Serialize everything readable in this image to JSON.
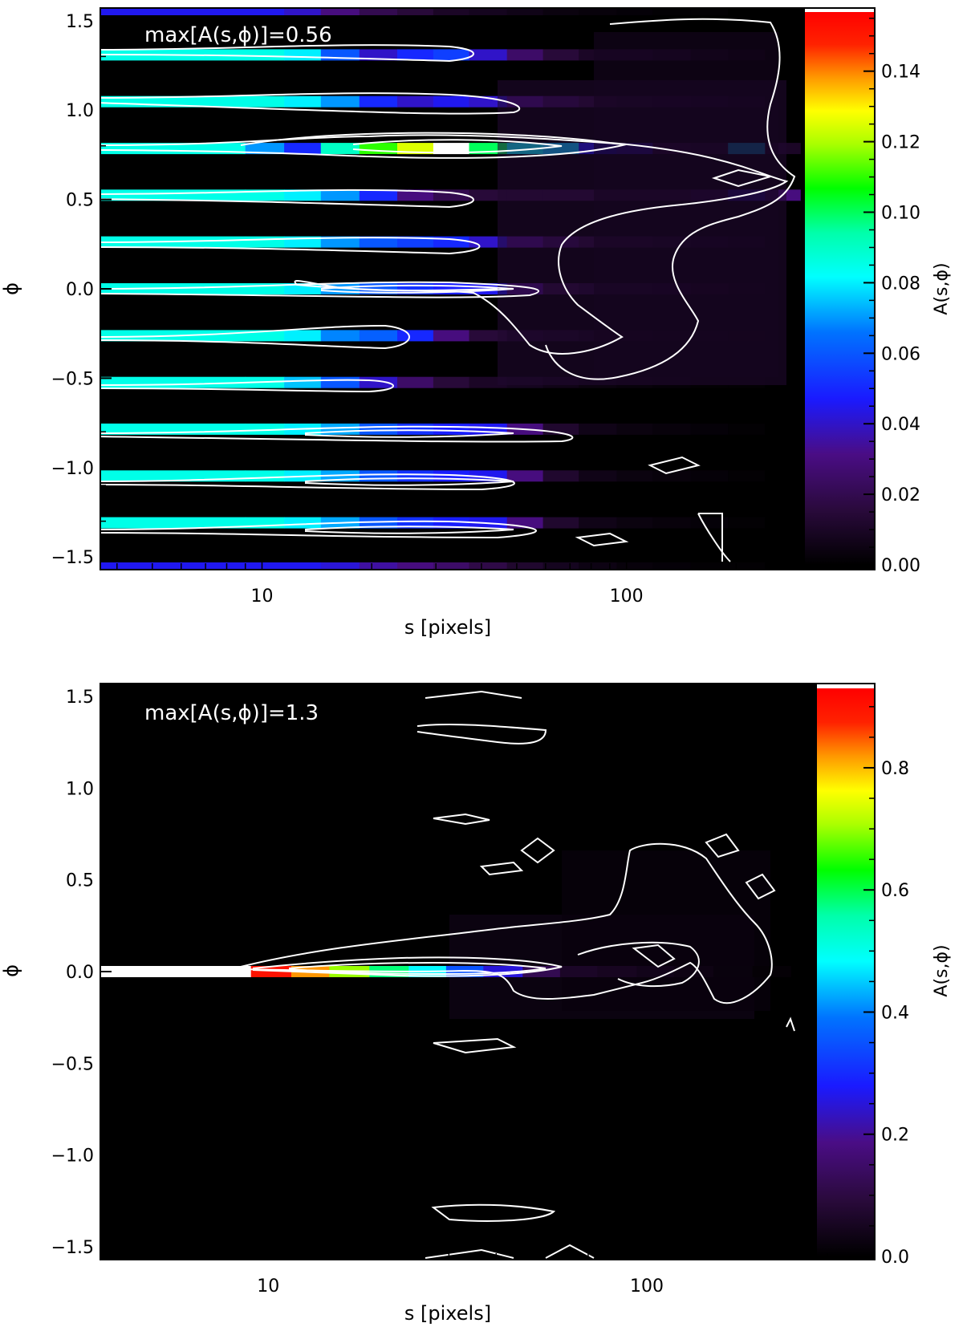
{
  "chart_data": [
    {
      "type": "heatmap",
      "annotation": "max[A(s,ϕ)]=0.56",
      "xlabel": "s [pixels]",
      "ylabel": "ϕ",
      "colorbar_label": "Α(s,ϕ)",
      "x_scale": "log",
      "xlim": [
        3.6,
        480
      ],
      "ylim": [
        -1.571,
        1.571
      ],
      "x_ticks": [
        10,
        100
      ],
      "x_tick_labels": [
        "10",
        "100"
      ],
      "y_ticks": [
        -1.5,
        -1.0,
        -0.5,
        0.0,
        0.5,
        1.0,
        1.5
      ],
      "y_tick_labels": [
        "−1.5",
        "−1.0",
        "−0.5",
        "0.0",
        "0.5",
        "1.0",
        "1.5"
      ],
      "colorbar_range": [
        0.0,
        0.157
      ],
      "colorbar_ticks": [
        0.0,
        0.02,
        0.04,
        0.06,
        0.08,
        0.1,
        0.12,
        0.14
      ],
      "colorbar_tick_labels": [
        "0.00",
        "0.02",
        "0.04",
        "0.06",
        "0.08",
        "0.10",
        "0.12",
        "0.14"
      ],
      "s_edges": [
        3.6,
        9,
        11.5,
        14.5,
        18.5,
        23.5,
        29.5,
        37,
        47,
        59,
        74,
        94,
        118,
        150,
        190,
        240,
        300
      ],
      "phi_centers": [
        -1.571,
        -1.309,
        -1.047,
        -0.785,
        -0.524,
        -0.262,
        0.0,
        0.262,
        0.524,
        0.785,
        1.047,
        1.309,
        1.571
      ],
      "values": [
        [
          0.045,
          0.045,
          0.045,
          0.042,
          0.035,
          0.03,
          0.025,
          0.018,
          0.012,
          0.008,
          0.005,
          0.003,
          0.002,
          0.001,
          0.001,
          0.0
        ],
        [
          0.085,
          0.085,
          0.08,
          0.072,
          0.06,
          0.052,
          0.048,
          0.045,
          0.03,
          0.012,
          0.006,
          0.004,
          0.003,
          0.002,
          0.001,
          0.0
        ],
        [
          0.085,
          0.085,
          0.08,
          0.072,
          0.06,
          0.052,
          0.048,
          0.045,
          0.03,
          0.012,
          0.006,
          0.004,
          0.003,
          0.002,
          0.001,
          0.0
        ],
        [
          0.085,
          0.085,
          0.08,
          0.072,
          0.06,
          0.052,
          0.048,
          0.045,
          0.03,
          0.012,
          0.006,
          0.004,
          0.003,
          0.002,
          0.001,
          0.0
        ],
        [
          0.085,
          0.085,
          0.075,
          0.06,
          0.04,
          0.025,
          0.015,
          0.01,
          0.008,
          0.006,
          0.004,
          0.003,
          0.002,
          0.001,
          0.001,
          0.0
        ],
        [
          0.085,
          0.085,
          0.08,
          0.068,
          0.062,
          0.05,
          0.03,
          0.015,
          0.01,
          0.008,
          0.006,
          0.004,
          0.003,
          0.002,
          0.001,
          0.0
        ],
        [
          0.085,
          0.085,
          0.08,
          0.07,
          0.06,
          0.052,
          0.048,
          0.045,
          0.03,
          0.015,
          0.012,
          0.012,
          0.01,
          0.006,
          0.003,
          0.0
        ],
        [
          0.085,
          0.085,
          0.08,
          0.07,
          0.06,
          0.055,
          0.05,
          0.04,
          0.03,
          0.02,
          0.015,
          0.015,
          0.012,
          0.008,
          0.005,
          0.0
        ],
        [
          0.085,
          0.085,
          0.08,
          0.07,
          0.05,
          0.03,
          0.02,
          0.015,
          0.015,
          0.015,
          0.015,
          0.015,
          0.015,
          0.02,
          0.04,
          0.03
        ],
        [
          0.085,
          0.07,
          0.05,
          0.09,
          0.11,
          0.125,
          0.157,
          0.1,
          0.08,
          0.075,
          0.045,
          0.04,
          0.015,
          0.012,
          0.075,
          0.01
        ],
        [
          0.085,
          0.085,
          0.08,
          0.07,
          0.05,
          0.04,
          0.045,
          0.04,
          0.03,
          0.02,
          0.015,
          0.012,
          0.01,
          0.008,
          0.005,
          0.0
        ],
        [
          0.085,
          0.085,
          0.08,
          0.06,
          0.04,
          0.05,
          0.055,
          0.04,
          0.025,
          0.015,
          0.01,
          0.01,
          0.008,
          0.005,
          0.003,
          0.0
        ],
        [
          0.045,
          0.045,
          0.04,
          0.03,
          0.02,
          0.015,
          0.01,
          0.008,
          0.006,
          0.004,
          0.003,
          0.002,
          0.001,
          0.001,
          0.0,
          0.0
        ]
      ],
      "contour_levels": [
        "outer",
        "inner"
      ]
    },
    {
      "type": "heatmap",
      "annotation": "max[A(s,ϕ)]=1.3",
      "xlabel": "s [pixels]",
      "ylabel": "ϕ",
      "colorbar_label": "Α(s,ϕ)",
      "x_scale": "log",
      "xlim": [
        3.6,
        400
      ],
      "ylim": [
        -1.571,
        1.571
      ],
      "x_ticks": [
        10,
        100
      ],
      "x_tick_labels": [
        "10",
        "100"
      ],
      "y_ticks": [
        -1.5,
        -1.0,
        -0.5,
        0.0,
        0.5,
        1.0,
        1.5
      ],
      "y_tick_labels": [
        "−1.5",
        "−1.0",
        "−0.5",
        "0.0",
        "0.5",
        "1.0",
        "1.5"
      ],
      "colorbar_range": [
        0.0,
        0.93
      ],
      "colorbar_ticks": [
        0.0,
        0.2,
        0.4,
        0.6,
        0.8
      ],
      "colorbar_tick_labels": [
        "0.0",
        "0.2",
        "0.4",
        "0.6",
        "0.8"
      ],
      "s_edges": [
        3.6,
        7,
        9,
        11.5,
        14.5,
        18.5,
        23.5,
        29.5,
        37,
        47,
        59,
        74,
        94,
        118,
        150,
        190,
        240
      ],
      "phi0_values": [
        0.93,
        0.93,
        0.9,
        0.82,
        0.7,
        0.58,
        0.48,
        0.35,
        0.25,
        0.12,
        0.06,
        0.05,
        0.04,
        0.03,
        0.02,
        0.01
      ],
      "contour_levels": [
        "outer",
        "inner"
      ]
    }
  ]
}
